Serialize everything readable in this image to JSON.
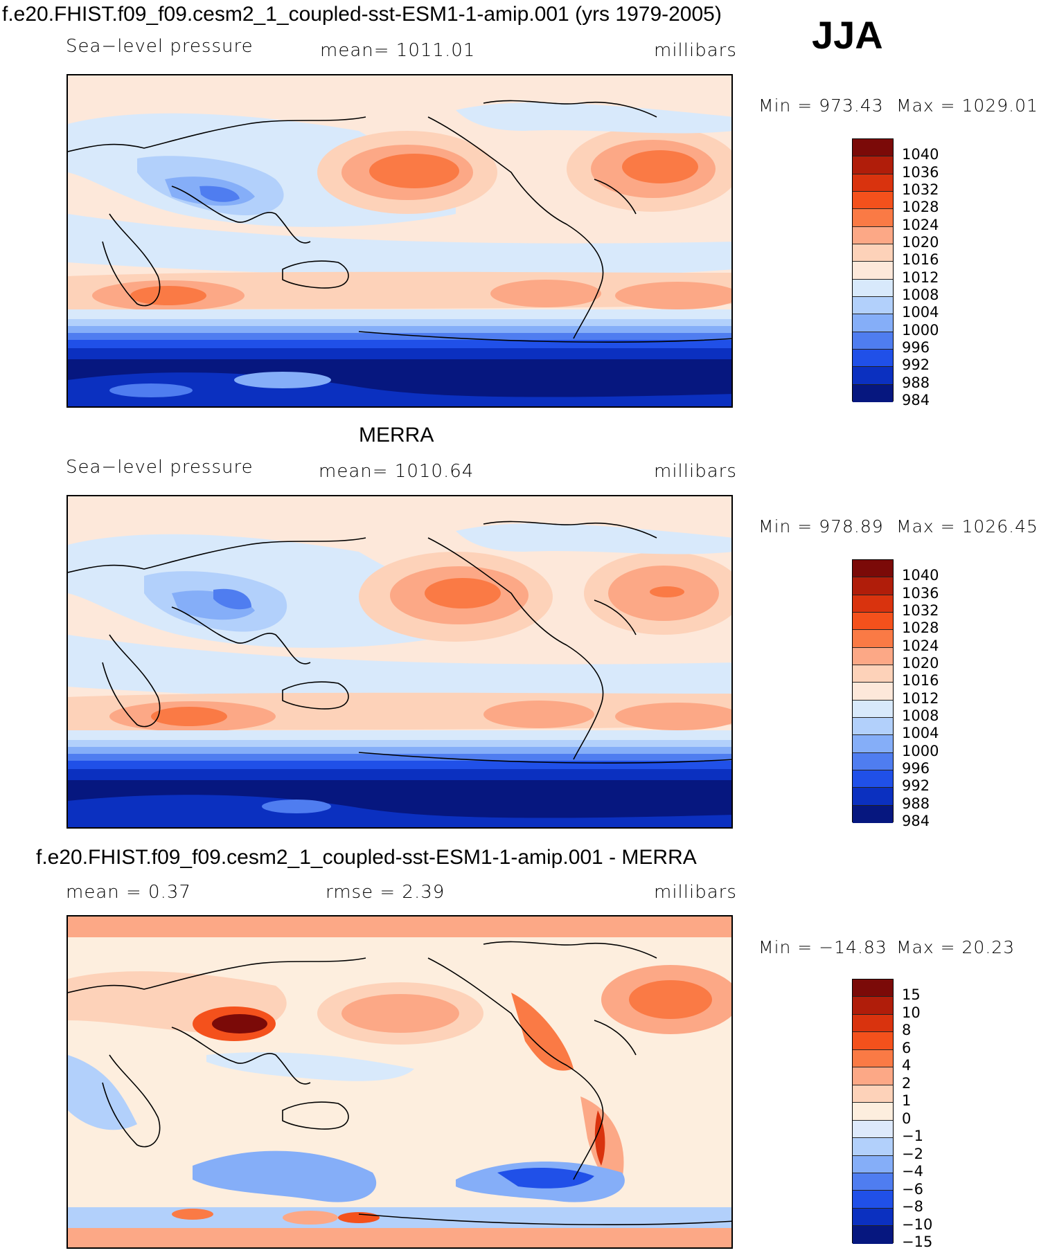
{
  "figure": {
    "title": "f.e20.FHIST.f09_f09.cesm2_1_coupled-sst-ESM1-1-amip.001 (yrs 1979-2005)",
    "season": "JJA"
  },
  "panels": [
    {
      "id": "model",
      "title": "",
      "variable": "Sea−level pressure",
      "stat_text": "mean=  1011.01",
      "units": "millibars",
      "min_text": "Min  =  973.43",
      "max_text": "Max  =  1029.01",
      "colorbar_levels": [
        "1040",
        "1036",
        "1032",
        "1028",
        "1024",
        "1020",
        "1016",
        "1012",
        "1008",
        "1004",
        "1000",
        "996",
        "992",
        "988",
        "984"
      ]
    },
    {
      "id": "obs",
      "title": "MERRA",
      "variable": "Sea−level pressure",
      "stat_text": "mean=  1010.64",
      "units": "millibars",
      "min_text": "Min  =  978.89",
      "max_text": "Max  =  1026.45",
      "colorbar_levels": [
        "1040",
        "1036",
        "1032",
        "1028",
        "1024",
        "1020",
        "1016",
        "1012",
        "1008",
        "1004",
        "1000",
        "996",
        "992",
        "988",
        "984"
      ]
    },
    {
      "id": "diff",
      "title": "f.e20.FHIST.f09_f09.cesm2_1_coupled-sst-ESM1-1-amip.001 - MERRA",
      "stat_left": "mean =     0.37",
      "stat_mid": "rmse =     2.39",
      "units": "millibars",
      "min_text": "Min  =  −14.83",
      "max_text": "Max  =    20.23",
      "colorbar_levels": [
        "15",
        "10",
        "8",
        "6",
        "4",
        "2",
        "1",
        "0",
        "−1",
        "−2",
        "−4",
        "−6",
        "−8",
        "−10",
        "−15"
      ]
    }
  ],
  "colors": {
    "slp_palette": [
      "#7b0a08",
      "#b01d0a",
      "#d9330e",
      "#f4511c",
      "#fa7a45",
      "#fca886",
      "#fdd2b9",
      "#fde8da",
      "#d8e9fb",
      "#b2d0fb",
      "#85aef8",
      "#4f7df0",
      "#2050e8",
      "#0b30c0",
      "#06177f"
    ],
    "diff_palette": [
      "#7b0a08",
      "#b01d0a",
      "#d9330e",
      "#f4511c",
      "#fa7a45",
      "#fca886",
      "#fdd2b9",
      "#fdeede",
      "#dde9fb",
      "#b2d0fb",
      "#85aef8",
      "#4f7df0",
      "#2050e8",
      "#0b30c0",
      "#06177f"
    ]
  }
}
